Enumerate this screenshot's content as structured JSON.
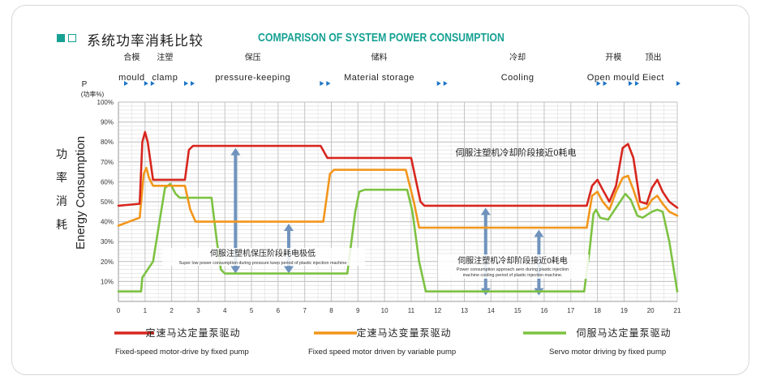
{
  "header": {
    "title_cn": "系统功率消耗比较",
    "title_en": "COMPARISON OF SYSTEM POWER CONSUMPTION",
    "colors": {
      "accent": "#17a193",
      "text": "#222222"
    }
  },
  "chart_data": {
    "type": "line",
    "title": "Comparison of System Power Consumption",
    "xlabel": "",
    "ylabel_cn": "功率消耗",
    "ylabel_en": "Energy Consumption",
    "y_unit": "P",
    "y_unit_sub": "(功率%)",
    "ylim": [
      0,
      100
    ],
    "xlim": [
      0,
      21
    ],
    "grid": true,
    "y_ticks": [
      "10%",
      "20%",
      "30%",
      "40%",
      "50%",
      "60%",
      "70%",
      "80%",
      "90%",
      "100%"
    ],
    "x_ticks": [
      "0",
      "1",
      "2",
      "3",
      "4",
      "5",
      "6",
      "7",
      "8",
      "9",
      "10",
      "11",
      "12",
      "13",
      "14",
      "15",
      "16",
      "17",
      "18",
      "19",
      "20",
      "21"
    ],
    "phases": [
      {
        "cn": "合模",
        "en": "mould"
      },
      {
        "cn": "注塑",
        "en": "clamp"
      },
      {
        "cn": "保压",
        "en": "pressure-keeping"
      },
      {
        "cn": "储料",
        "en": "Material storage"
      },
      {
        "cn": "冷却",
        "en": "Cooling"
      },
      {
        "cn": "开模",
        "en": "Open mould"
      },
      {
        "cn": "顶出",
        "en": "Eiect"
      }
    ],
    "series": [
      {
        "name": "定速马达定量泵驱动",
        "name_en": "Fixed-speed motor-drive by fixed pump",
        "color": "#d7261e",
        "points": [
          [
            0,
            48
          ],
          [
            0.8,
            49
          ],
          [
            0.9,
            80
          ],
          [
            1.0,
            85
          ],
          [
            1.1,
            80
          ],
          [
            1.3,
            61
          ],
          [
            2.5,
            61
          ],
          [
            2.65,
            76
          ],
          [
            2.8,
            78
          ],
          [
            7.6,
            78
          ],
          [
            7.85,
            72
          ],
          [
            11.0,
            72
          ],
          [
            11.35,
            50
          ],
          [
            11.5,
            48
          ],
          [
            17.6,
            48
          ],
          [
            17.8,
            58
          ],
          [
            18.0,
            61
          ],
          [
            18.2,
            56
          ],
          [
            18.45,
            50
          ],
          [
            18.7,
            58
          ],
          [
            18.95,
            77
          ],
          [
            19.15,
            79
          ],
          [
            19.35,
            72
          ],
          [
            19.6,
            50
          ],
          [
            19.85,
            49
          ],
          [
            20.05,
            57
          ],
          [
            20.25,
            61
          ],
          [
            20.45,
            55
          ],
          [
            20.7,
            50
          ],
          [
            21,
            47
          ]
        ]
      },
      {
        "name": "定速马达变量泵驱动",
        "name_en": "Fixed speed motor driven by variable pump",
        "color": "#f2961b",
        "points": [
          [
            0,
            38
          ],
          [
            0.8,
            42
          ],
          [
            0.95,
            64
          ],
          [
            1.05,
            67
          ],
          [
            1.15,
            62
          ],
          [
            1.3,
            58
          ],
          [
            2.5,
            58
          ],
          [
            2.7,
            46
          ],
          [
            2.9,
            40
          ],
          [
            7.7,
            40
          ],
          [
            7.95,
            64
          ],
          [
            8.1,
            66
          ],
          [
            10.8,
            66
          ],
          [
            11.1,
            50
          ],
          [
            11.3,
            37
          ],
          [
            17.6,
            37
          ],
          [
            17.8,
            53
          ],
          [
            18.0,
            55
          ],
          [
            18.2,
            50
          ],
          [
            18.45,
            46
          ],
          [
            18.7,
            55
          ],
          [
            18.95,
            62
          ],
          [
            19.15,
            63
          ],
          [
            19.35,
            56
          ],
          [
            19.6,
            46
          ],
          [
            19.85,
            47
          ],
          [
            20.05,
            51
          ],
          [
            20.25,
            53
          ],
          [
            20.45,
            49
          ],
          [
            20.7,
            45
          ],
          [
            21,
            43
          ]
        ]
      },
      {
        "name": "伺服马达定量泵驱动",
        "name_en": "Servo motor driving by fixed pump",
        "color": "#7dc242",
        "points": [
          [
            0,
            5
          ],
          [
            0.85,
            5
          ],
          [
            0.9,
            12
          ],
          [
            1.1,
            16
          ],
          [
            1.3,
            20
          ],
          [
            1.75,
            57
          ],
          [
            1.95,
            59
          ],
          [
            2.15,
            54
          ],
          [
            2.3,
            52
          ],
          [
            3.5,
            52
          ],
          [
            3.7,
            30
          ],
          [
            3.85,
            16
          ],
          [
            4.0,
            14
          ],
          [
            8.6,
            14
          ],
          [
            8.9,
            45
          ],
          [
            9.05,
            55
          ],
          [
            9.25,
            56
          ],
          [
            10.85,
            56
          ],
          [
            11.05,
            45
          ],
          [
            11.3,
            20
          ],
          [
            11.55,
            5
          ],
          [
            17.5,
            5
          ],
          [
            17.7,
            25
          ],
          [
            17.85,
            44
          ],
          [
            17.95,
            46
          ],
          [
            18.1,
            42
          ],
          [
            18.4,
            41
          ],
          [
            18.65,
            46
          ],
          [
            18.85,
            50
          ],
          [
            19.05,
            54
          ],
          [
            19.25,
            51
          ],
          [
            19.5,
            43
          ],
          [
            19.7,
            42
          ],
          [
            20.05,
            45
          ],
          [
            20.25,
            46
          ],
          [
            20.45,
            45
          ],
          [
            20.7,
            30
          ],
          [
            21,
            5
          ]
        ]
      }
    ],
    "annotations": [
      {
        "text_cn": "伺服注塑机冷却阶段接近0耗电",
        "text_en": ""
      },
      {
        "text_cn": "伺服注塑机保压阶段耗电极低",
        "text_en": "Super low power consumption during pressure keep period of plastic injection machine"
      },
      {
        "text_cn": "伺服注塑机冷却阶段接近0耗电",
        "text_en": "Power consumption approach aero during plastic injection machine cooling period of plastic injection machine."
      }
    ]
  }
}
